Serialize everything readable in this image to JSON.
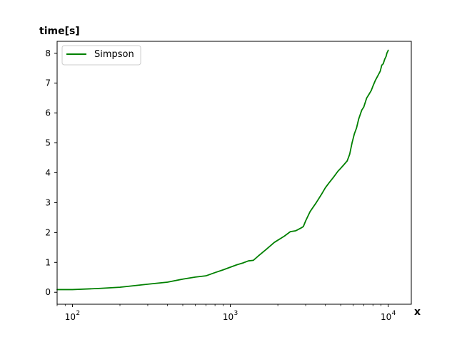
{
  "chart_data": {
    "type": "line",
    "xlabel": "x",
    "ylabel": "time[s]",
    "x_scale": "log",
    "xlim": [
      80,
      14000
    ],
    "ylim": [
      -0.4,
      8.4
    ],
    "grid": false,
    "legend_position": "top-left",
    "x_ticks": [
      {
        "value": 100,
        "label": "10",
        "exp": "2"
      },
      {
        "value": 1000,
        "label": "10",
        "exp": "3"
      },
      {
        "value": 10000,
        "label": "10",
        "exp": "4"
      }
    ],
    "y_ticks": [
      {
        "value": 0,
        "label": "0"
      },
      {
        "value": 1,
        "label": "1"
      },
      {
        "value": 2,
        "label": "2"
      },
      {
        "value": 3,
        "label": "3"
      },
      {
        "value": 4,
        "label": "4"
      },
      {
        "value": 5,
        "label": "5"
      },
      {
        "value": 6,
        "label": "6"
      },
      {
        "value": 7,
        "label": "7"
      },
      {
        "value": 8,
        "label": "8"
      }
    ],
    "series": [
      {
        "name": "Simpson",
        "color": "#008000",
        "x": [
          80,
          100,
          150,
          200,
          300,
          400,
          500,
          600,
          700,
          800,
          900,
          1000,
          1100,
          1200,
          1300,
          1400,
          1500,
          1700,
          1900,
          2200,
          2400,
          2600,
          2800,
          2900,
          3000,
          3200,
          3500,
          3800,
          4000,
          4200,
          4500,
          4800,
          5000,
          5200,
          5500,
          5700,
          5900,
          6100,
          6300,
          6500,
          6800,
          7000,
          7300,
          7500,
          7800,
          8000,
          8300,
          8500,
          8700,
          8900,
          9100,
          9300,
          9500,
          9700,
          9800,
          10000
        ],
        "y": [
          0.09,
          0.09,
          0.13,
          0.17,
          0.27,
          0.34,
          0.44,
          0.51,
          0.55,
          0.66,
          0.75,
          0.84,
          0.92,
          0.98,
          1.05,
          1.07,
          1.21,
          1.45,
          1.67,
          1.88,
          2.03,
          2.06,
          2.15,
          2.2,
          2.39,
          2.7,
          3.0,
          3.3,
          3.5,
          3.65,
          3.85,
          4.05,
          4.15,
          4.25,
          4.4,
          4.62,
          5.0,
          5.3,
          5.5,
          5.8,
          6.1,
          6.2,
          6.5,
          6.6,
          6.75,
          6.9,
          7.1,
          7.2,
          7.3,
          7.4,
          7.6,
          7.65,
          7.8,
          7.9,
          8.0,
          8.1
        ]
      }
    ]
  }
}
